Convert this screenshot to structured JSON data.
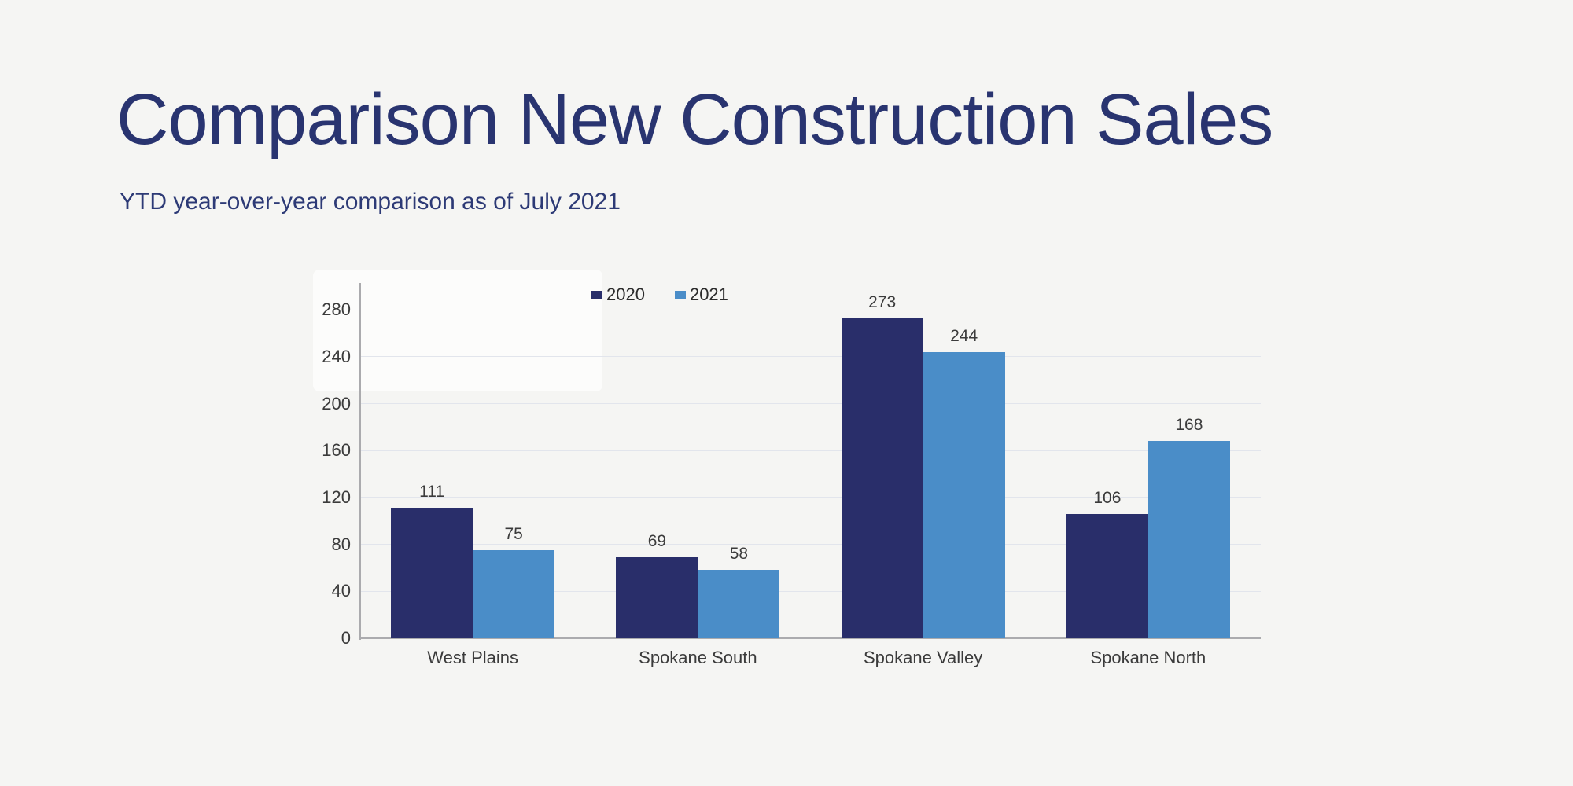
{
  "page": {
    "background_color": "#F5F5F3"
  },
  "header": {
    "title": "Comparison New Construction Sales",
    "subtitle": "YTD year-over-year comparison as of July 2021",
    "title_color": "#293470",
    "subtitle_color": "#2D3A76"
  },
  "chart_data": {
    "type": "bar",
    "title": "",
    "xlabel": "",
    "ylabel": "",
    "categories": [
      "West Plains",
      "Spokane South",
      "Spokane Valley",
      "Spokane North"
    ],
    "series": [
      {
        "name": "2020",
        "color": "#292E6A",
        "values": [
          111,
          69,
          273,
          106
        ]
      },
      {
        "name": "2021",
        "color": "#4A8DC8",
        "values": [
          75,
          58,
          244,
          168
        ]
      }
    ],
    "data_labels": [
      [
        "111",
        "69",
        "273",
        "106"
      ],
      [
        "75",
        "58",
        "244",
        "168"
      ]
    ],
    "ylim": [
      0,
      300
    ],
    "yticks": [
      0,
      40,
      80,
      120,
      160,
      200,
      240,
      280
    ],
    "grid": true,
    "grid_color": "#E2E5EC",
    "axis_color": "#ABABAE",
    "label_color": "#3B3B3B",
    "legend_position": "top"
  }
}
